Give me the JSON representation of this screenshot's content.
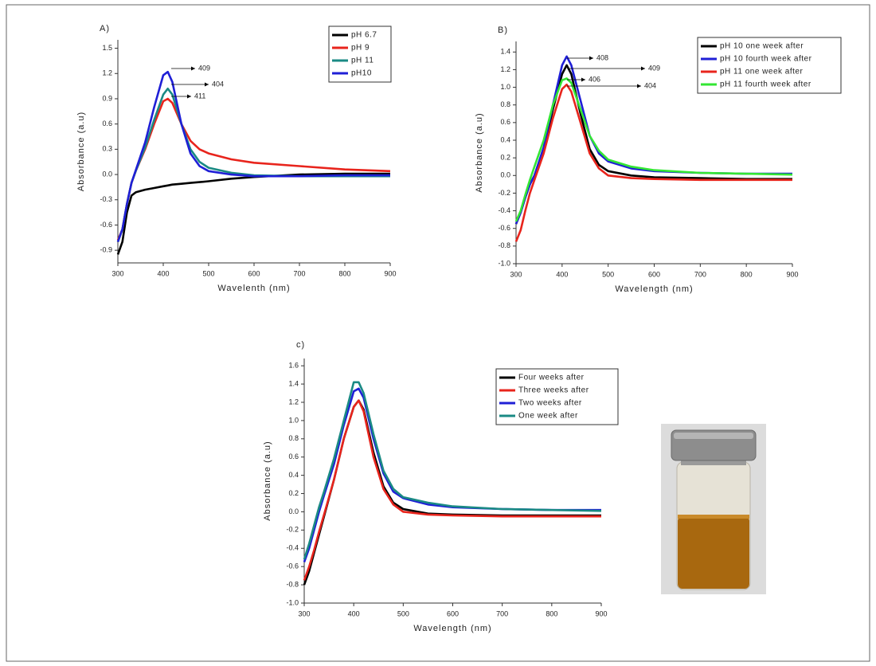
{
  "chart_data": [
    {
      "type": "line",
      "title": "A)",
      "x_label": "Wavelenth (nm)",
      "y_label": "Absorbance (a.u)",
      "x": [
        300,
        310,
        320,
        330,
        340,
        360,
        380,
        400,
        410,
        420,
        440,
        460,
        480,
        500,
        550,
        600,
        700,
        800,
        900
      ],
      "xlim": [
        300,
        900
      ],
      "xticks": [
        300,
        400,
        500,
        600,
        700,
        800,
        900
      ],
      "ylim": [
        -1.05,
        1.6
      ],
      "yticks": [
        1.5,
        1.2,
        0.9,
        0.6,
        0.3,
        {
          "value": 0,
          "label": "0.0"
        },
        -0.3,
        -0.6,
        -0.9
      ],
      "legend_position": "upper right",
      "annotations": [
        "409",
        "404",
        "411"
      ],
      "series": [
        {
          "name": "pH 6.7",
          "color": "#000000",
          "values": [
            -0.95,
            -0.8,
            -0.45,
            -0.25,
            -0.21,
            -0.18,
            -0.16,
            -0.14,
            -0.13,
            -0.12,
            -0.11,
            -0.1,
            -0.09,
            -0.08,
            -0.05,
            -0.03,
            0.0,
            0.01,
            0.01
          ]
        },
        {
          "name": "pH 9",
          "color": "#e8241c",
          "values": [
            -0.78,
            -0.65,
            -0.35,
            -0.1,
            0.05,
            0.3,
            0.6,
            0.87,
            0.9,
            0.85,
            0.6,
            0.4,
            0.3,
            0.25,
            0.18,
            0.14,
            0.1,
            0.06,
            0.04
          ]
        },
        {
          "name": "pH 11",
          "color": "#1a8a84",
          "values": [
            -0.8,
            -0.65,
            -0.35,
            -0.1,
            0.05,
            0.32,
            0.65,
            0.95,
            1.02,
            0.95,
            0.6,
            0.3,
            0.15,
            0.08,
            0.02,
            -0.01,
            -0.02,
            -0.02,
            -0.02
          ]
        },
        {
          "name": "pH10",
          "color": "#1f1fd6",
          "values": [
            -0.8,
            -0.65,
            -0.35,
            -0.1,
            0.06,
            0.38,
            0.8,
            1.18,
            1.22,
            1.1,
            0.6,
            0.25,
            0.1,
            0.04,
            0.0,
            -0.02,
            -0.02,
            -0.01,
            -0.01
          ]
        }
      ]
    },
    {
      "type": "line",
      "title": "B)",
      "x_label": "Wavelength (nm)",
      "y_label": "Absorbance (a.u)",
      "x": [
        300,
        310,
        320,
        330,
        340,
        360,
        380,
        400,
        410,
        420,
        440,
        460,
        480,
        500,
        550,
        600,
        700,
        800,
        900
      ],
      "xlim": [
        300,
        900
      ],
      "xticks": [
        300,
        400,
        500,
        600,
        700,
        800,
        900
      ],
      "ylim": [
        -1.0,
        1.52
      ],
      "yticks": [
        1.4,
        1.2,
        {
          "value": 1,
          "label": "1.0"
        },
        0.8,
        0.6,
        0.4,
        0.2,
        {
          "value": 0,
          "label": "0.0"
        },
        -0.2,
        -0.4,
        -0.6,
        -0.8,
        {
          "value": -1,
          "label": "-1.0"
        }
      ],
      "legend_position": "upper right",
      "annotations": [
        "408",
        "409",
        "406",
        "404"
      ],
      "series": [
        {
          "name": "pH 10 one week after",
          "color": "#000000",
          "values": [
            -0.55,
            -0.42,
            -0.25,
            -0.1,
            0.0,
            0.3,
            0.75,
            1.15,
            1.25,
            1.15,
            0.7,
            0.3,
            0.12,
            0.05,
            0.0,
            -0.02,
            -0.03,
            -0.04,
            -0.04
          ]
        },
        {
          "name": "pH 10 fourth week after",
          "color": "#1f1fd6",
          "values": [
            -0.55,
            -0.42,
            -0.25,
            -0.1,
            0.0,
            0.32,
            0.8,
            1.25,
            1.35,
            1.25,
            0.85,
            0.45,
            0.25,
            0.16,
            0.08,
            0.05,
            0.03,
            0.02,
            0.02
          ]
        },
        {
          "name": "pH 11 one week after",
          "color": "#e8241c",
          "values": [
            -0.75,
            -0.62,
            -0.4,
            -0.2,
            -0.05,
            0.25,
            0.65,
            0.98,
            1.03,
            0.95,
            0.6,
            0.25,
            0.08,
            0.0,
            -0.03,
            -0.04,
            -0.05,
            -0.05,
            -0.05
          ]
        },
        {
          "name": "pH 11 fourth week after",
          "color": "#33e633",
          "values": [
            -0.52,
            -0.4,
            -0.22,
            -0.05,
            0.1,
            0.4,
            0.8,
            1.08,
            1.1,
            1.05,
            0.75,
            0.45,
            0.28,
            0.18,
            0.1,
            0.06,
            0.03,
            0.02,
            0.01
          ]
        }
      ]
    },
    {
      "type": "line",
      "title": "c)",
      "x_label": "Wavelength (nm)",
      "y_label": "Absorbance (a.u)",
      "x": [
        300,
        310,
        320,
        330,
        340,
        360,
        380,
        400,
        410,
        420,
        440,
        460,
        480,
        500,
        550,
        600,
        700,
        800,
        900
      ],
      "xlim": [
        300,
        900
      ],
      "xticks": [
        300,
        400,
        500,
        600,
        700,
        800,
        900
      ],
      "ylim": [
        -1.0,
        1.68
      ],
      "yticks": [
        1.6,
        1.4,
        1.2,
        {
          "value": 1,
          "label": "1.0"
        },
        0.8,
        0.6,
        0.4,
        0.2,
        {
          "value": 0,
          "label": "0.0"
        },
        -0.2,
        -0.4,
        -0.6,
        -0.8,
        {
          "value": -1,
          "label": "-1.0"
        }
      ],
      "legend_position": "upper right",
      "series": [
        {
          "name": "Four weeks after",
          "color": "#000000",
          "values": [
            -0.8,
            -0.65,
            -0.45,
            -0.25,
            -0.05,
            0.35,
            0.8,
            1.15,
            1.22,
            1.12,
            0.65,
            0.28,
            0.1,
            0.03,
            -0.02,
            -0.03,
            -0.04,
            -0.04,
            -0.04
          ]
        },
        {
          "name": "Three weeks after",
          "color": "#e8241c",
          "values": [
            -0.75,
            -0.6,
            -0.42,
            -0.22,
            -0.03,
            0.35,
            0.8,
            1.15,
            1.22,
            1.1,
            0.6,
            0.25,
            0.08,
            0.0,
            -0.03,
            -0.04,
            -0.05,
            -0.05,
            -0.05
          ]
        },
        {
          "name": "Two weeks after",
          "color": "#1f1fd6",
          "values": [
            -0.55,
            -0.4,
            -0.2,
            0.0,
            0.18,
            0.52,
            0.95,
            1.32,
            1.35,
            1.25,
            0.8,
            0.42,
            0.22,
            0.15,
            0.08,
            0.05,
            0.03,
            0.02,
            0.02
          ]
        },
        {
          "name": "One week after",
          "color": "#1a8a84",
          "values": [
            -0.52,
            -0.35,
            -0.15,
            0.05,
            0.22,
            0.58,
            1.0,
            1.42,
            1.42,
            1.3,
            0.85,
            0.45,
            0.25,
            0.16,
            0.1,
            0.06,
            0.03,
            0.02,
            0.01
          ]
        }
      ]
    }
  ]
}
